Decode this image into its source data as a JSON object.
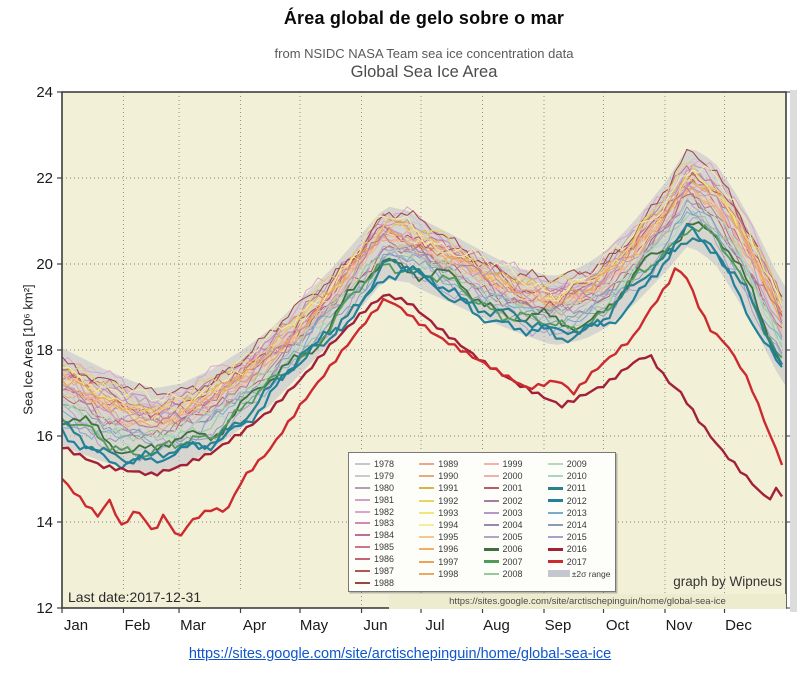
{
  "header": {
    "title": "Área global de gelo sobre o mar"
  },
  "footer": {
    "link_text": "https://sites.google.com/site/arctischepinguin/home/global-sea-ice"
  },
  "chart_data": {
    "type": "line",
    "title": "Global Sea Ice Area",
    "subtitle": "from NSIDC NASA Team sea ice concentration data",
    "ylabel": "Sea Ice Area [10⁶ km²]",
    "ylim": [
      12,
      24
    ],
    "yticks": [
      24,
      22,
      20,
      18,
      16,
      14,
      12
    ],
    "grid": "dotted",
    "legend_position": "lower center-right",
    "months": [
      "Jan",
      "Feb",
      "Mar",
      "Apr",
      "May",
      "Jun",
      "Jul",
      "Aug",
      "Sep",
      "Oct",
      "Nov",
      "Dec"
    ],
    "month_start_days": [
      0,
      31,
      59,
      90,
      120,
      151,
      181,
      212,
      243,
      273,
      304,
      334
    ],
    "last_date_label": "Last date:2017-12-31",
    "credit": "graph by Wipneus",
    "url_strip": "https://sites.google.com/site/arctischepinguin/home/global-sea-ice",
    "band_label": "±2σ range",
    "band_color": "#b9b9c7",
    "band_legend_color": "#c6c6d0",
    "plot_bg": "#f2f1d8",
    "climatology_mean": [
      [
        0,
        16.9
      ],
      [
        20,
        16.5
      ],
      [
        35,
        16.25
      ],
      [
        46,
        16.1
      ],
      [
        60,
        16.25
      ],
      [
        75,
        16.6
      ],
      [
        91,
        17.1
      ],
      [
        105,
        17.6
      ],
      [
        120,
        18.3
      ],
      [
        135,
        19.0
      ],
      [
        152,
        19.9
      ],
      [
        163,
        20.5
      ],
      [
        175,
        20.4
      ],
      [
        182,
        20.2
      ],
      [
        196,
        19.9
      ],
      [
        213,
        19.5
      ],
      [
        227,
        19.2
      ],
      [
        248,
        18.9
      ],
      [
        263,
        19.1
      ],
      [
        274,
        19.4
      ],
      [
        288,
        20.0
      ],
      [
        305,
        20.9
      ],
      [
        316,
        21.6
      ],
      [
        329,
        21.2
      ],
      [
        339,
        20.5
      ],
      [
        349,
        19.7
      ],
      [
        364,
        18.3
      ]
    ],
    "band_halfwidth": [
      [
        0,
        1.15
      ],
      [
        46,
        1.0
      ],
      [
        91,
        0.9
      ],
      [
        135,
        0.85
      ],
      [
        163,
        0.85
      ],
      [
        196,
        0.8
      ],
      [
        227,
        0.75
      ],
      [
        248,
        0.8
      ],
      [
        274,
        0.9
      ],
      [
        305,
        1.05
      ],
      [
        316,
        1.15
      ],
      [
        339,
        1.2
      ],
      [
        364,
        1.15
      ]
    ],
    "years": [
      {
        "label": "1978",
        "color": "#c6c6d2",
        "offset": 0.55,
        "bold": false
      },
      {
        "label": "1979",
        "color": "#c9c9cf",
        "offset": 0.72,
        "bold": false
      },
      {
        "label": "1980",
        "color": "#b89bbb",
        "offset": 0.62,
        "bold": false
      },
      {
        "label": "1981",
        "color": "#d6a0c6",
        "offset": 0.4,
        "bold": false
      },
      {
        "label": "1982",
        "color": "#dfa3cd",
        "offset": 0.78,
        "bold": false
      },
      {
        "label": "1983",
        "color": "#d189b6",
        "offset": 0.52,
        "bold": false
      },
      {
        "label": "1984",
        "color": "#c16b9b",
        "offset": 0.38,
        "bold": false
      },
      {
        "label": "1985",
        "color": "#cc7689",
        "offset": 0.58,
        "bold": false
      },
      {
        "label": "1986",
        "color": "#c36373",
        "offset": 0.28,
        "bold": false
      },
      {
        "label": "1987",
        "color": "#b35555",
        "offset": 0.45,
        "bold": false
      },
      {
        "label": "1988",
        "color": "#9b4444",
        "offset": 0.8,
        "bold": false
      },
      {
        "label": "1989",
        "color": "#eca689",
        "offset": 0.35,
        "bold": false
      },
      {
        "label": "1990",
        "color": "#e7aa7a",
        "offset": 0.22,
        "bold": false
      },
      {
        "label": "1991",
        "color": "#dab449",
        "offset": 0.48,
        "bold": false
      },
      {
        "label": "1992",
        "color": "#e9d460",
        "offset": 0.6,
        "bold": false
      },
      {
        "label": "1993",
        "color": "#f1e780",
        "offset": 0.34,
        "bold": false
      },
      {
        "label": "1994",
        "color": "#f3ee9f",
        "offset": 0.65,
        "bold": false
      },
      {
        "label": "1995",
        "color": "#f3ca8d",
        "offset": 0.42,
        "bold": false
      },
      {
        "label": "1996",
        "color": "#f0af65",
        "offset": 0.15,
        "bold": false
      },
      {
        "label": "1997",
        "color": "#eea255",
        "offset": 0.3,
        "bold": false
      },
      {
        "label": "1998",
        "color": "#e9a96a",
        "offset": 0.2,
        "bold": false
      },
      {
        "label": "1999",
        "color": "#f0b4a4",
        "offset": 0.05,
        "bold": false
      },
      {
        "label": "2000",
        "color": "#efb1ab",
        "offset": 0.12,
        "bold": false
      },
      {
        "label": "2001",
        "color": "#b65f63",
        "offset": -0.05,
        "bold": false
      },
      {
        "label": "2002",
        "color": "#a97b9c",
        "offset": 0.06,
        "bold": false
      },
      {
        "label": "2003",
        "color": "#b797c7",
        "offset": 0.18,
        "bold": false
      },
      {
        "label": "2004",
        "color": "#958aab",
        "offset": -0.12,
        "bold": false
      },
      {
        "label": "2005",
        "color": "#b4a4c5",
        "offset": -0.18,
        "bold": false
      },
      {
        "label": "2006",
        "color": "#3d703d",
        "offset": -0.45,
        "bold": true,
        "width": 1.8
      },
      {
        "label": "2007",
        "color": "#509c56",
        "offset": -0.52,
        "bold": true,
        "width": 1.8
      },
      {
        "label": "2008",
        "color": "#95ca95",
        "offset": -0.22,
        "bold": false
      },
      {
        "label": "2009",
        "color": "#b3daba",
        "offset": -0.1,
        "bold": false
      },
      {
        "label": "2010",
        "color": "#aad5c3",
        "offset": -0.28,
        "bold": false
      },
      {
        "label": "2011",
        "color": "#2a818e",
        "offset": -0.68,
        "bold": true,
        "width": 2.2
      },
      {
        "label": "2012",
        "color": "#21819b",
        "offset": -0.78,
        "bold": true,
        "width": 2.2
      },
      {
        "label": "2013",
        "color": "#7aabce",
        "offset": -0.35,
        "bold": false
      },
      {
        "label": "2014",
        "color": "#8c9bb4",
        "offset": -0.42,
        "bold": false
      },
      {
        "label": "2015",
        "color": "#aa9fca",
        "offset": -0.55,
        "bold": false
      },
      {
        "label": "2016",
        "color": "#a32038",
        "bold": true,
        "width": 2.4,
        "points": [
          [
            0,
            15.75
          ],
          [
            20,
            15.3
          ],
          [
            46,
            15.1
          ],
          [
            60,
            15.3
          ],
          [
            75,
            15.6
          ],
          [
            91,
            16.1
          ],
          [
            105,
            16.6
          ],
          [
            120,
            17.3
          ],
          [
            135,
            18.1
          ],
          [
            152,
            18.9
          ],
          [
            163,
            19.3
          ],
          [
            175,
            19.1
          ],
          [
            190,
            18.5
          ],
          [
            213,
            17.7
          ],
          [
            230,
            17.2
          ],
          [
            252,
            16.7
          ],
          [
            265,
            17.0
          ],
          [
            274,
            17.2
          ],
          [
            288,
            17.7
          ],
          [
            296,
            17.9
          ],
          [
            305,
            17.3
          ],
          [
            312,
            17.0
          ],
          [
            322,
            16.3
          ],
          [
            332,
            15.7
          ],
          [
            342,
            15.2
          ],
          [
            350,
            14.8
          ],
          [
            356,
            14.5
          ],
          [
            360,
            14.75
          ],
          [
            364,
            14.6
          ]
        ]
      },
      {
        "label": "2017",
        "color": "#cc2a2e",
        "bold": true,
        "width": 2.4,
        "points": [
          [
            0,
            15.0
          ],
          [
            10,
            14.5
          ],
          [
            18,
            14.15
          ],
          [
            24,
            14.5
          ],
          [
            30,
            13.9
          ],
          [
            38,
            14.3
          ],
          [
            46,
            13.75
          ],
          [
            52,
            14.2
          ],
          [
            58,
            13.6
          ],
          [
            66,
            14.05
          ],
          [
            75,
            14.3
          ],
          [
            83,
            14.25
          ],
          [
            91,
            15.0
          ],
          [
            105,
            15.7
          ],
          [
            120,
            16.7
          ],
          [
            135,
            17.6
          ],
          [
            152,
            18.6
          ],
          [
            163,
            19.2
          ],
          [
            170,
            19.0
          ],
          [
            178,
            18.7
          ],
          [
            190,
            18.3
          ],
          [
            205,
            17.9
          ],
          [
            220,
            17.5
          ],
          [
            235,
            17.1
          ],
          [
            250,
            17.3
          ],
          [
            258,
            17.0
          ],
          [
            268,
            17.5
          ],
          [
            278,
            17.9
          ],
          [
            288,
            18.3
          ],
          [
            296,
            18.9
          ],
          [
            305,
            19.5
          ],
          [
            310,
            19.95
          ],
          [
            316,
            19.6
          ],
          [
            322,
            18.9
          ],
          [
            328,
            18.4
          ],
          [
            334,
            18.2
          ],
          [
            341,
            17.7
          ],
          [
            347,
            17.2
          ],
          [
            352,
            16.6
          ],
          [
            358,
            15.9
          ],
          [
            364,
            15.25
          ]
        ]
      }
    ]
  }
}
